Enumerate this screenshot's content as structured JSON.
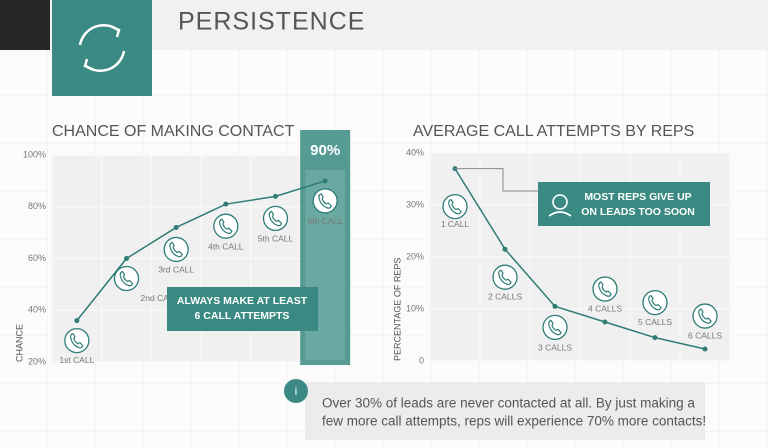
{
  "header": {
    "title": "PERSISTENCE"
  },
  "chart_data": [
    {
      "type": "line",
      "title": "CHANCE OF MAKING CONTACT",
      "y_label": "CHANCE",
      "categories": [
        "1st CALL",
        "2nd CALL",
        "3rd CALL",
        "4th CALL",
        "5th CALL",
        "6th CALL"
      ],
      "values": [
        36,
        60,
        72,
        81,
        84,
        90
      ],
      "color": "#2f7d77",
      "ylim": [
        20,
        100
      ],
      "yticks": [
        {
          "value": 20,
          "label": "20%"
        },
        {
          "value": 40,
          "label": "40%"
        },
        {
          "value": 60,
          "label": "60%"
        },
        {
          "value": 80,
          "label": "80%"
        },
        {
          "value": 100,
          "label": "100%"
        }
      ],
      "grid": true,
      "highlight": {
        "label": "90%"
      },
      "annotation": [
        "ALWAYS MAKE AT LEAST",
        "6 CALL ATTEMPTS"
      ]
    },
    {
      "type": "line",
      "title": "AVERAGE CALL ATTEMPTS BY REPS",
      "y_label": "PERCENTAGE OF REPS",
      "categories": [
        "1 CALL",
        "2 CALLS",
        "3 CALLS",
        "4 CALLS",
        "5 CALLS",
        "6 CALLS"
      ],
      "values": [
        37,
        21.5,
        10.5,
        7.5,
        4.5,
        2.3
      ],
      "color": "#2f7d77",
      "ylim": [
        0,
        40
      ],
      "yticks": [
        0,
        {
          "value": 10,
          "label": "10%"
        },
        {
          "value": 20,
          "label": "20%"
        },
        {
          "value": 30,
          "label": "30%"
        },
        {
          "value": 40,
          "label": "40%"
        }
      ],
      "grid": true,
      "annotation": [
        "MOST REPS GIVE UP",
        "ON LEADS TOO SOON"
      ]
    }
  ],
  "info": {
    "icon": "i",
    "lines": [
      "Over 30% of leads are never contacted at all. By just making a",
      "few more call attempts, reps will experience 70% more contacts!"
    ]
  }
}
